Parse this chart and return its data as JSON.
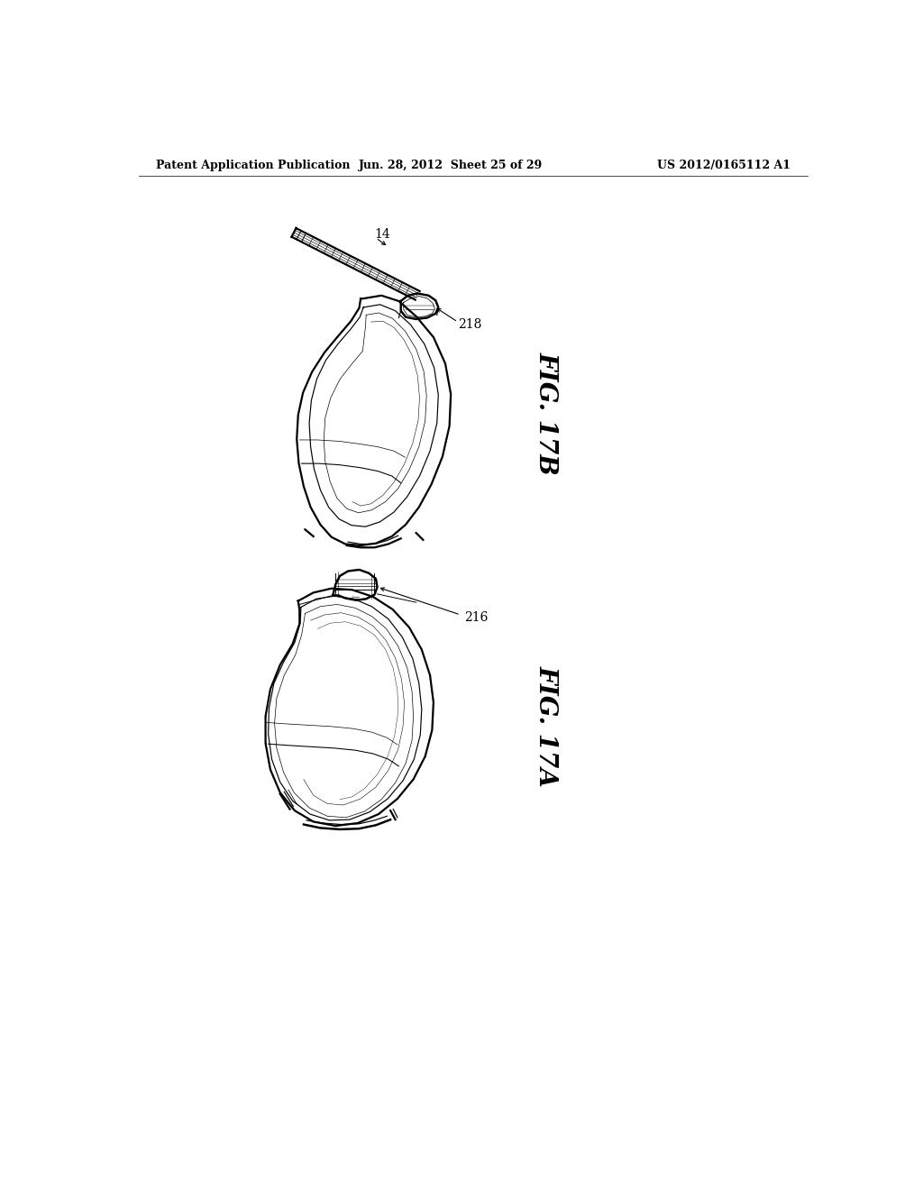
{
  "background_color": "#ffffff",
  "header_left": "Patent Application Publication",
  "header_center": "Jun. 28, 2012  Sheet 25 of 29",
  "header_right": "US 2012/0165112 A1",
  "fig_top_label": "FIG. 17B",
  "fig_bottom_label": "FIG. 17A",
  "ref_14": "14",
  "ref_218": "218",
  "ref_216": "216",
  "line_color": "#000000",
  "text_color": "#000000",
  "header_fontsize": 9,
  "label_fontsize": 20,
  "ref_fontsize": 10
}
